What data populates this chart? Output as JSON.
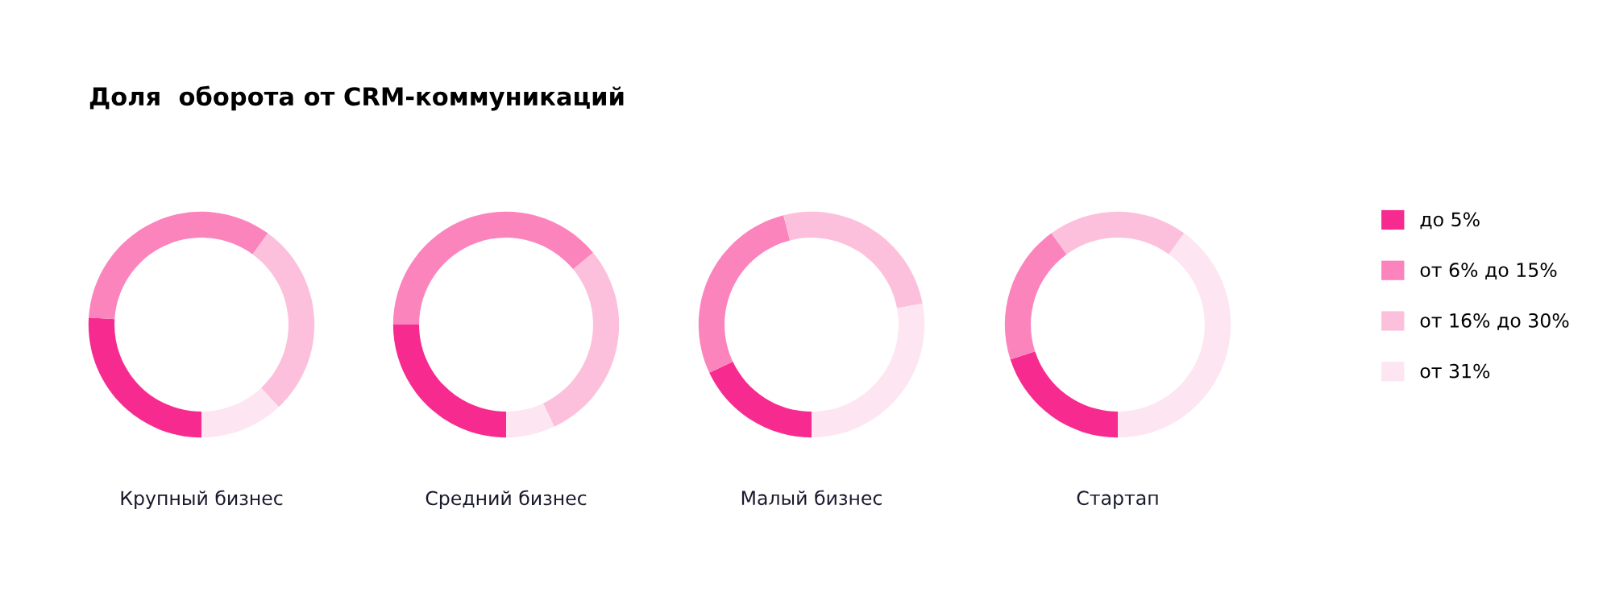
{
  "chart_data": {
    "type": "donut",
    "title": "Доля  оборота от CRM-коммуникаций",
    "categories": [
      "до 5%",
      "от 6% до 15%",
      "от 16% до 30%",
      "от 31%"
    ],
    "colors": [
      "#f72b8f",
      "#fb84bd",
      "#fcc0dc",
      "#fde6f1"
    ],
    "series": [
      {
        "name": "Крупный бизнес",
        "values": [
          26,
          34,
          28,
          12
        ]
      },
      {
        "name": "Средний бизнес",
        "values": [
          25,
          39,
          29,
          7
        ]
      },
      {
        "name": "Малый бизнес",
        "values": [
          18,
          28,
          26,
          28
        ]
      },
      {
        "name": "Стартап",
        "values": [
          20,
          20,
          20,
          40
        ]
      }
    ],
    "legend": "right"
  }
}
